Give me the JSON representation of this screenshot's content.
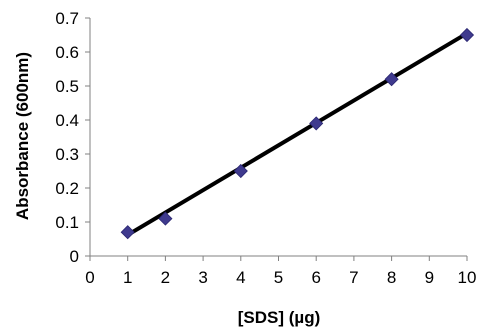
{
  "chart_data": {
    "type": "scatter",
    "title": "",
    "xlabel": "[SDS] (µg)",
    "ylabel": "Absorbance (600nm)",
    "xlim": [
      0,
      10
    ],
    "ylim": [
      0,
      0.7
    ],
    "x_ticks": [
      0,
      1,
      2,
      3,
      4,
      5,
      6,
      7,
      8,
      9,
      10
    ],
    "y_ticks": [
      0,
      0.1,
      0.2,
      0.3,
      0.4,
      0.5,
      0.6,
      0.7
    ],
    "grid": false,
    "legend": "none",
    "series": [
      {
        "marker": "diamond",
        "color": "#3f3a8e",
        "x": [
          1,
          2,
          4,
          6,
          8,
          10
        ],
        "y": [
          0.07,
          0.11,
          0.25,
          0.39,
          0.52,
          0.65
        ]
      }
    ],
    "trendline": {
      "type": "linear",
      "color": "#000000",
      "x": [
        1,
        10
      ],
      "y": [
        0.062,
        0.655
      ]
    }
  }
}
